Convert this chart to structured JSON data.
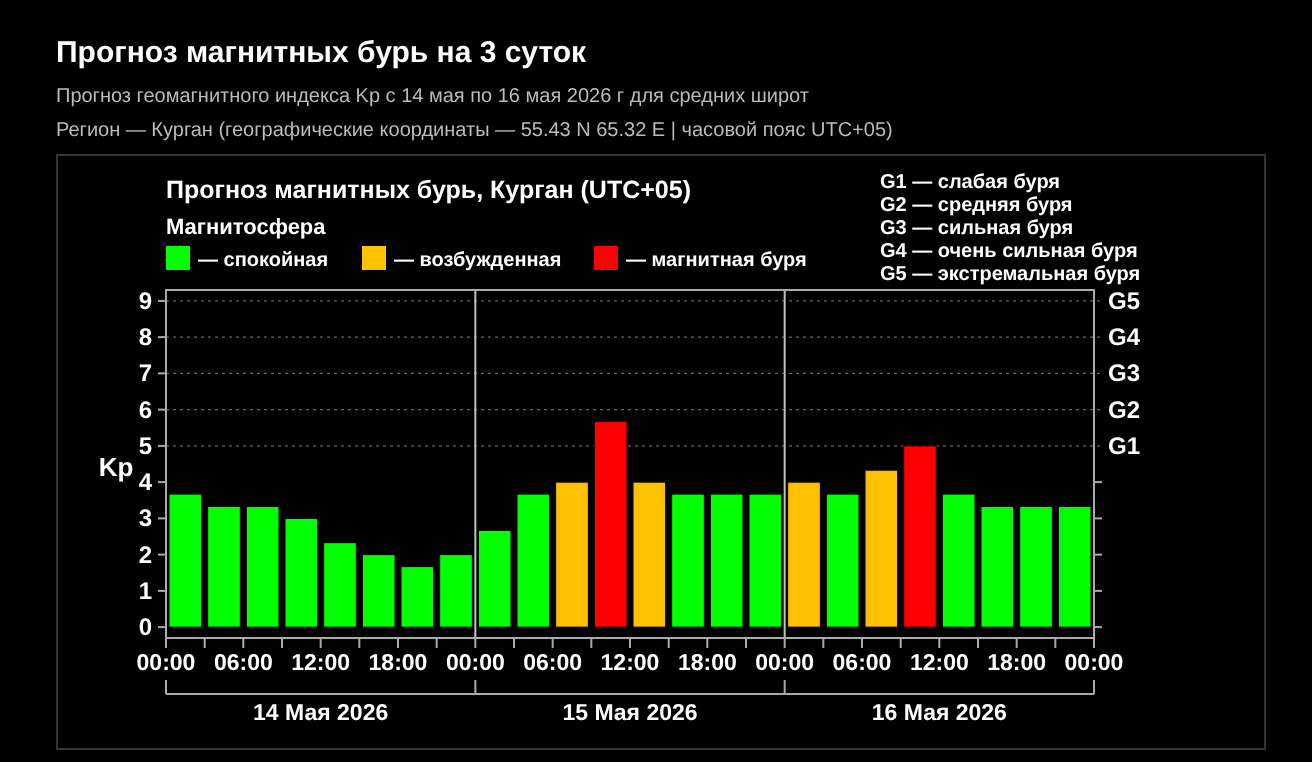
{
  "chart_data": {
    "type": "bar",
    "title": "Прогноз магнитных бурь на 3 суток",
    "subtitle": "Прогноз геомагнитного индекса Kp с 14 мая по 16 мая 2026 г для средних широт\nРегион — Курган (географические координаты — 55.43 N 65.32 E | часовой пояс UTC+05)",
    "annotations": [
      "Прогноз магнитных бурь, Курган (UTC+05)",
      "G1 — слабая буря",
      "G2 — средняя буря",
      "G3 — сильная буря",
      "G4 — очень сильная буря",
      "G5 — экстремальная буря",
      "14 Мая 2026",
      "15 Мая 2026",
      "16 Мая 2026"
    ],
    "legend_title": "Магнитосфера",
    "legend": "top left",
    "ylabel": "Kp",
    "x": [
      "2026-05-14T01:30",
      "2026-05-14T04:30",
      "2026-05-14T07:30",
      "2026-05-14T10:30",
      "2026-05-14T13:30",
      "2026-05-14T16:30",
      "2026-05-14T19:30",
      "2026-05-14T22:30",
      "2026-05-15T01:30",
      "2026-05-15T04:30",
      "2026-05-15T07:30",
      "2026-05-15T10:30",
      "2026-05-15T13:30",
      "2026-05-15T16:30",
      "2026-05-15T19:30",
      "2026-05-15T22:30",
      "2026-05-16T01:30",
      "2026-05-16T04:30",
      "2026-05-16T07:30",
      "2026-05-16T10:30",
      "2026-05-16T13:30",
      "2026-05-16T16:30",
      "2026-05-16T19:30",
      "2026-05-16T22:30"
    ],
    "series": [
      {
        "name": "— спокойная",
        "color": "#00ff00",
        "values": [
          3.67,
          3.33,
          3.33,
          3,
          2.33,
          2,
          1.67,
          2,
          2.67,
          3.67,
          null,
          null,
          null,
          3.67,
          3.67,
          3.67,
          null,
          3.67,
          null,
          null,
          3.67,
          3.33,
          3.33,
          3.33
        ]
      },
      {
        "name": "— возбужденная",
        "color": "#ffc000",
        "values": [
          null,
          null,
          null,
          null,
          null,
          null,
          null,
          null,
          null,
          null,
          4,
          null,
          4,
          null,
          null,
          null,
          4,
          null,
          4.33,
          null,
          null,
          null,
          null,
          null
        ]
      },
      {
        "name": "— магнитная буря",
        "color": "#ff0000",
        "values": [
          null,
          null,
          null,
          null,
          null,
          null,
          null,
          null,
          null,
          null,
          null,
          5.67,
          null,
          null,
          null,
          null,
          null,
          null,
          null,
          5,
          null,
          null,
          null,
          null
        ]
      }
    ],
    "xlim": [
      "2026-05-14T00:00",
      "2026-05-17T00:00"
    ],
    "xticks": [
      {
        "value": "2026-05-14T00:00",
        "label": "00:00"
      },
      {
        "value": "2026-05-14T03:00",
        "label": null
      },
      {
        "value": "2026-05-14T06:00",
        "label": "06:00"
      },
      {
        "value": "2026-05-14T09:00",
        "label": null
      },
      {
        "value": "2026-05-14T12:00",
        "label": "12:00"
      },
      {
        "value": "2026-05-14T15:00",
        "label": null
      },
      {
        "value": "2026-05-14T18:00",
        "label": "18:00"
      },
      {
        "value": "2026-05-14T21:00",
        "label": null
      },
      {
        "value": "2026-05-15T00:00",
        "label": "00:00"
      },
      {
        "value": "2026-05-15T03:00",
        "label": null
      },
      {
        "value": "2026-05-15T06:00",
        "label": "06:00"
      },
      {
        "value": "2026-05-15T09:00",
        "label": null
      },
      {
        "value": "2026-05-15T12:00",
        "label": "12:00"
      },
      {
        "value": "2026-05-15T15:00",
        "label": null
      },
      {
        "value": "2026-05-15T18:00",
        "label": "18:00"
      },
      {
        "value": "2026-05-15T21:00",
        "label": null
      },
      {
        "value": "2026-05-16T00:00",
        "label": "00:00"
      },
      {
        "value": "2026-05-16T03:00",
        "label": null
      },
      {
        "value": "2026-05-16T06:00",
        "label": "06:00"
      },
      {
        "value": "2026-05-16T09:00",
        "label": null
      },
      {
        "value": "2026-05-16T12:00",
        "label": "12:00"
      },
      {
        "value": "2026-05-16T15:00",
        "label": null
      },
      {
        "value": "2026-05-16T18:00",
        "label": "18:00"
      },
      {
        "value": "2026-05-16T21:00",
        "label": null
      },
      {
        "value": "2026-05-17T00:00",
        "label": "00:00"
      }
    ],
    "ylim": [
      -0.3,
      9.3
    ],
    "yticks": [
      0,
      1,
      2,
      3,
      4,
      5,
      6,
      7,
      8,
      9
    ],
    "ref_lines": [
      {
        "axis": "x",
        "value": "2026-05-15T00:00",
        "color": "#c0c0c0"
      },
      {
        "axis": "x",
        "value": "2026-05-16T00:00",
        "color": "#c0c0c0"
      },
      {
        "axis": "y",
        "value": 5,
        "label": "G1",
        "color": "#666666",
        "line_style": "dotted"
      },
      {
        "axis": "y",
        "value": 6,
        "label": "G2",
        "color": "#666666",
        "line_style": "dotted"
      },
      {
        "axis": "y",
        "value": 7,
        "label": "G3",
        "color": "#666666",
        "line_style": "dotted"
      },
      {
        "axis": "y",
        "value": 8,
        "label": "G4",
        "color": "#666666",
        "line_style": "dotted"
      },
      {
        "axis": "y",
        "value": 9,
        "label": "G5",
        "color": "#666666",
        "line_style": "dotted"
      }
    ],
    "grid": false
  }
}
